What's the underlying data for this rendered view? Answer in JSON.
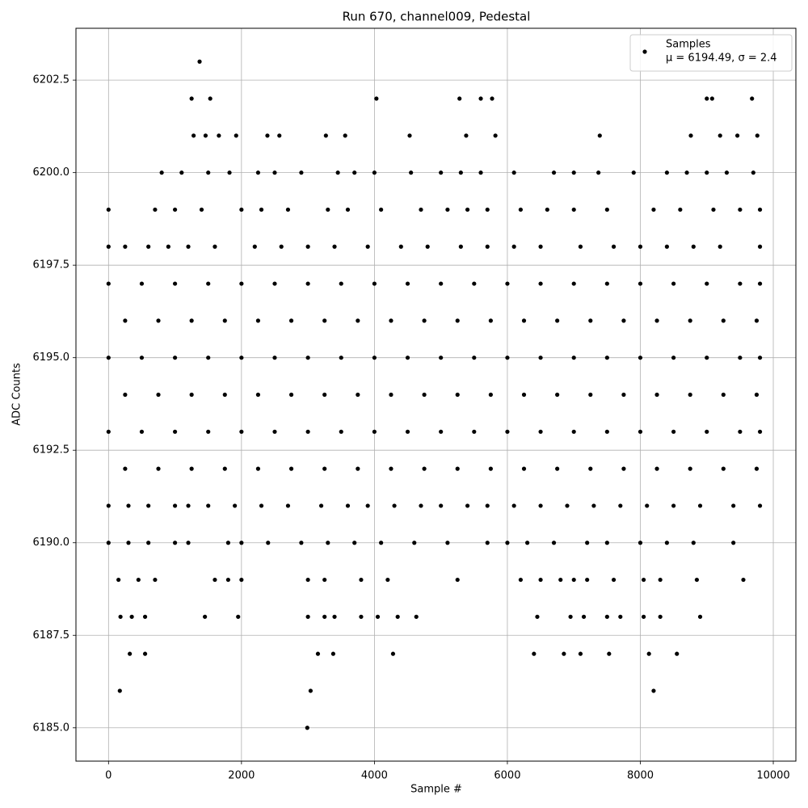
{
  "chart_data": {
    "type": "scatter",
    "title": "Run 670, channel009, Pedestal",
    "x_label": "Sample #",
    "y_label": "ADC Counts",
    "xlim": [
      -490,
      10340
    ],
    "ylim": [
      6184.1,
      6203.9
    ],
    "xticks": [
      0,
      2000,
      4000,
      6000,
      8000,
      10000
    ],
    "yticks": [
      {
        "value": 6185,
        "label": "6185.0"
      },
      {
        "value": 6187.5,
        "label": "6187.5"
      },
      {
        "value": 6190,
        "label": "6190.0"
      },
      {
        "value": 6192.5,
        "label": "6192.5"
      },
      {
        "value": 6195,
        "label": "6195.0"
      },
      {
        "value": 6197.5,
        "label": "6197.5"
      },
      {
        "value": 6200,
        "label": "6200.0"
      },
      {
        "value": 6202.5,
        "label": "6202.5"
      }
    ],
    "grid": true,
    "legend": "upper right",
    "legend_stats": "μ = 6194.49, σ = 2.4",
    "x": [
      1370,
      1250,
      1530,
      4030,
      5280,
      5600,
      5770,
      9000,
      9080,
      9680,
      1280,
      1460,
      1660,
      1920,
      2390,
      2570,
      3270,
      3560,
      4530,
      5380,
      5820,
      7390,
      8760,
      9200,
      9460,
      9760,
      800,
      1100,
      1500,
      1820,
      2250,
      2500,
      2900,
      3450,
      3700,
      4000,
      4550,
      5000,
      5300,
      5600,
      6100,
      6700,
      7000,
      7370,
      7900,
      8400,
      8700,
      9000,
      9300,
      9700,
      0,
      700,
      1000,
      1400,
      2000,
      2300,
      2700,
      3300,
      3600,
      4100,
      4700,
      5100,
      5400,
      5700,
      6200,
      6600,
      7000,
      7500,
      8200,
      8600,
      9100,
      9500,
      9800,
      0,
      250,
      600,
      900,
      1200,
      1600,
      2200,
      2600,
      3000,
      3400,
      3900,
      4400,
      4800,
      5300,
      5700,
      6100,
      6500,
      7100,
      7600,
      8000,
      8400,
      8800,
      9200,
      9800,
      0,
      500,
      1000,
      1500,
      2000,
      2500,
      3000,
      3500,
      4000,
      4500,
      5000,
      5500,
      6000,
      6500,
      7000,
      7500,
      8000,
      8500,
      9000,
      9500,
      9800,
      250,
      750,
      1250,
      1750,
      2250,
      2750,
      3250,
      3750,
      4250,
      4750,
      5250,
      5750,
      6250,
      6750,
      7250,
      7750,
      8250,
      8750,
      9250,
      9750,
      0,
      500,
      1000,
      1500,
      2000,
      2500,
      3000,
      3500,
      4000,
      4500,
      5000,
      5500,
      6000,
      6500,
      7000,
      7500,
      8000,
      8500,
      9000,
      9500,
      9800,
      250,
      750,
      1250,
      1750,
      2250,
      2750,
      3250,
      3750,
      4250,
      4750,
      5250,
      5750,
      6250,
      6750,
      7250,
      7750,
      8250,
      8750,
      9250,
      9750,
      0,
      500,
      1000,
      1500,
      2000,
      2500,
      3000,
      3500,
      4000,
      4500,
      5000,
      5500,
      6000,
      6500,
      7000,
      7500,
      8000,
      8500,
      9000,
      9500,
      9800,
      250,
      750,
      1250,
      1750,
      2250,
      2750,
      3250,
      3750,
      4250,
      4750,
      5250,
      5750,
      6250,
      6750,
      7250,
      7750,
      8250,
      8750,
      9250,
      9750,
      0,
      300,
      600,
      1000,
      1200,
      1500,
      1900,
      2300,
      2700,
      3200,
      3600,
      3900,
      4300,
      4700,
      5000,
      5400,
      5700,
      6100,
      6500,
      6900,
      7300,
      7700,
      8100,
      8500,
      8900,
      9400,
      9800,
      0,
      300,
      600,
      1000,
      1200,
      1800,
      2000,
      2400,
      2900,
      3300,
      3700,
      4100,
      4600,
      5100,
      5700,
      6000,
      6300,
      6700,
      7200,
      7500,
      8000,
      8400,
      8800,
      9400,
      150,
      450,
      700,
      1600,
      1800,
      2000,
      3000,
      3250,
      3800,
      4200,
      5250,
      6200,
      6500,
      6800,
      7000,
      7200,
      7600,
      8050,
      8300,
      8850,
      9550,
      180,
      350,
      550,
      1450,
      1950,
      3000,
      3250,
      3400,
      3800,
      4050,
      4350,
      4630,
      6450,
      6950,
      7150,
      7500,
      7700,
      8050,
      8300,
      8900,
      320,
      550,
      3150,
      3380,
      4280,
      6400,
      6850,
      7100,
      7530,
      8130,
      8550,
      170,
      3040,
      8200,
      2990
    ],
    "series": [
      {
        "name": "Samples",
        "color": "#000000",
        "values": [
          6203,
          6202,
          6202,
          6202,
          6202,
          6202,
          6202,
          6202,
          6202,
          6202,
          6201,
          6201,
          6201,
          6201,
          6201,
          6201,
          6201,
          6201,
          6201,
          6201,
          6201,
          6201,
          6201,
          6201,
          6201,
          6201,
          6200,
          6200,
          6200,
          6200,
          6200,
          6200,
          6200,
          6200,
          6200,
          6200,
          6200,
          6200,
          6200,
          6200,
          6200,
          6200,
          6200,
          6200,
          6200,
          6200,
          6200,
          6200,
          6200,
          6200,
          6199,
          6199,
          6199,
          6199,
          6199,
          6199,
          6199,
          6199,
          6199,
          6199,
          6199,
          6199,
          6199,
          6199,
          6199,
          6199,
          6199,
          6199,
          6199,
          6199,
          6199,
          6199,
          6199,
          6198,
          6198,
          6198,
          6198,
          6198,
          6198,
          6198,
          6198,
          6198,
          6198,
          6198,
          6198,
          6198,
          6198,
          6198,
          6198,
          6198,
          6198,
          6198,
          6198,
          6198,
          6198,
          6198,
          6198,
          6197,
          6197,
          6197,
          6197,
          6197,
          6197,
          6197,
          6197,
          6197,
          6197,
          6197,
          6197,
          6197,
          6197,
          6197,
          6197,
          6197,
          6197,
          6197,
          6197,
          6197,
          6196,
          6196,
          6196,
          6196,
          6196,
          6196,
          6196,
          6196,
          6196,
          6196,
          6196,
          6196,
          6196,
          6196,
          6196,
          6196,
          6196,
          6196,
          6196,
          6196,
          6195,
          6195,
          6195,
          6195,
          6195,
          6195,
          6195,
          6195,
          6195,
          6195,
          6195,
          6195,
          6195,
          6195,
          6195,
          6195,
          6195,
          6195,
          6195,
          6195,
          6195,
          6194,
          6194,
          6194,
          6194,
          6194,
          6194,
          6194,
          6194,
          6194,
          6194,
          6194,
          6194,
          6194,
          6194,
          6194,
          6194,
          6194,
          6194,
          6194,
          6194,
          6193,
          6193,
          6193,
          6193,
          6193,
          6193,
          6193,
          6193,
          6193,
          6193,
          6193,
          6193,
          6193,
          6193,
          6193,
          6193,
          6193,
          6193,
          6193,
          6193,
          6193,
          6192,
          6192,
          6192,
          6192,
          6192,
          6192,
          6192,
          6192,
          6192,
          6192,
          6192,
          6192,
          6192,
          6192,
          6192,
          6192,
          6192,
          6192,
          6192,
          6192,
          6191,
          6191,
          6191,
          6191,
          6191,
          6191,
          6191,
          6191,
          6191,
          6191,
          6191,
          6191,
          6191,
          6191,
          6191,
          6191,
          6191,
          6191,
          6191,
          6191,
          6191,
          6191,
          6191,
          6191,
          6191,
          6191,
          6191,
          6190,
          6190,
          6190,
          6190,
          6190,
          6190,
          6190,
          6190,
          6190,
          6190,
          6190,
          6190,
          6190,
          6190,
          6190,
          6190,
          6190,
          6190,
          6190,
          6190,
          6190,
          6190,
          6190,
          6190,
          6189,
          6189,
          6189,
          6189,
          6189,
          6189,
          6189,
          6189,
          6189,
          6189,
          6189,
          6189,
          6189,
          6189,
          6189,
          6189,
          6189,
          6189,
          6189,
          6189,
          6189,
          6188,
          6188,
          6188,
          6188,
          6188,
          6188,
          6188,
          6188,
          6188,
          6188,
          6188,
          6188,
          6188,
          6188,
          6188,
          6188,
          6188,
          6188,
          6188,
          6188,
          6187,
          6187,
          6187,
          6187,
          6187,
          6187,
          6187,
          6187,
          6187,
          6187,
          6187,
          6186,
          6186,
          6186,
          6185
        ]
      }
    ]
  }
}
